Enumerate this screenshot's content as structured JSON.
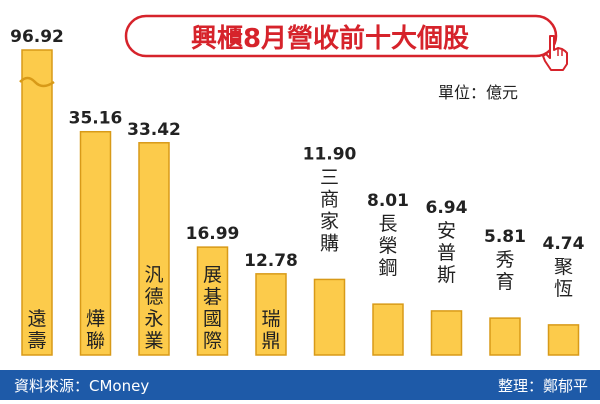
{
  "chart_data": {
    "type": "bar",
    "title": "興櫃8月營收前十大個股",
    "unit_label": "單位：億元",
    "categories": [
      "遠壽",
      "燁聯",
      "汎德永業",
      "展碁國際",
      "瑞鼎",
      "三商家購",
      "長榮鋼",
      "安普斯",
      "秀育",
      "聚恆"
    ],
    "values": [
      96.92,
      35.16,
      33.42,
      16.99,
      12.78,
      11.9,
      8.01,
      6.94,
      5.81,
      4.74
    ],
    "value_labels": [
      "96.92",
      "35.16",
      "33.42",
      "16.99",
      "12.78",
      "11.90",
      "8.01",
      "6.94",
      "5.81",
      "4.74"
    ],
    "axis_break_on": "遠壽",
    "xlabel": "",
    "ylabel": ""
  },
  "footer": {
    "source": "資料來源：CMoney",
    "editor": "整理：鄭郁平"
  },
  "colors": {
    "bar_fill": "#FCCB4B",
    "bar_stroke": "#D89A18",
    "title_text": "#D6232B",
    "title_border": "#D6232B",
    "footer_bg": "#1E5AA8",
    "footer_text": "#ffffff",
    "label_text": "#222222"
  },
  "icons": {
    "pointer": "hand-pointer-icon"
  }
}
